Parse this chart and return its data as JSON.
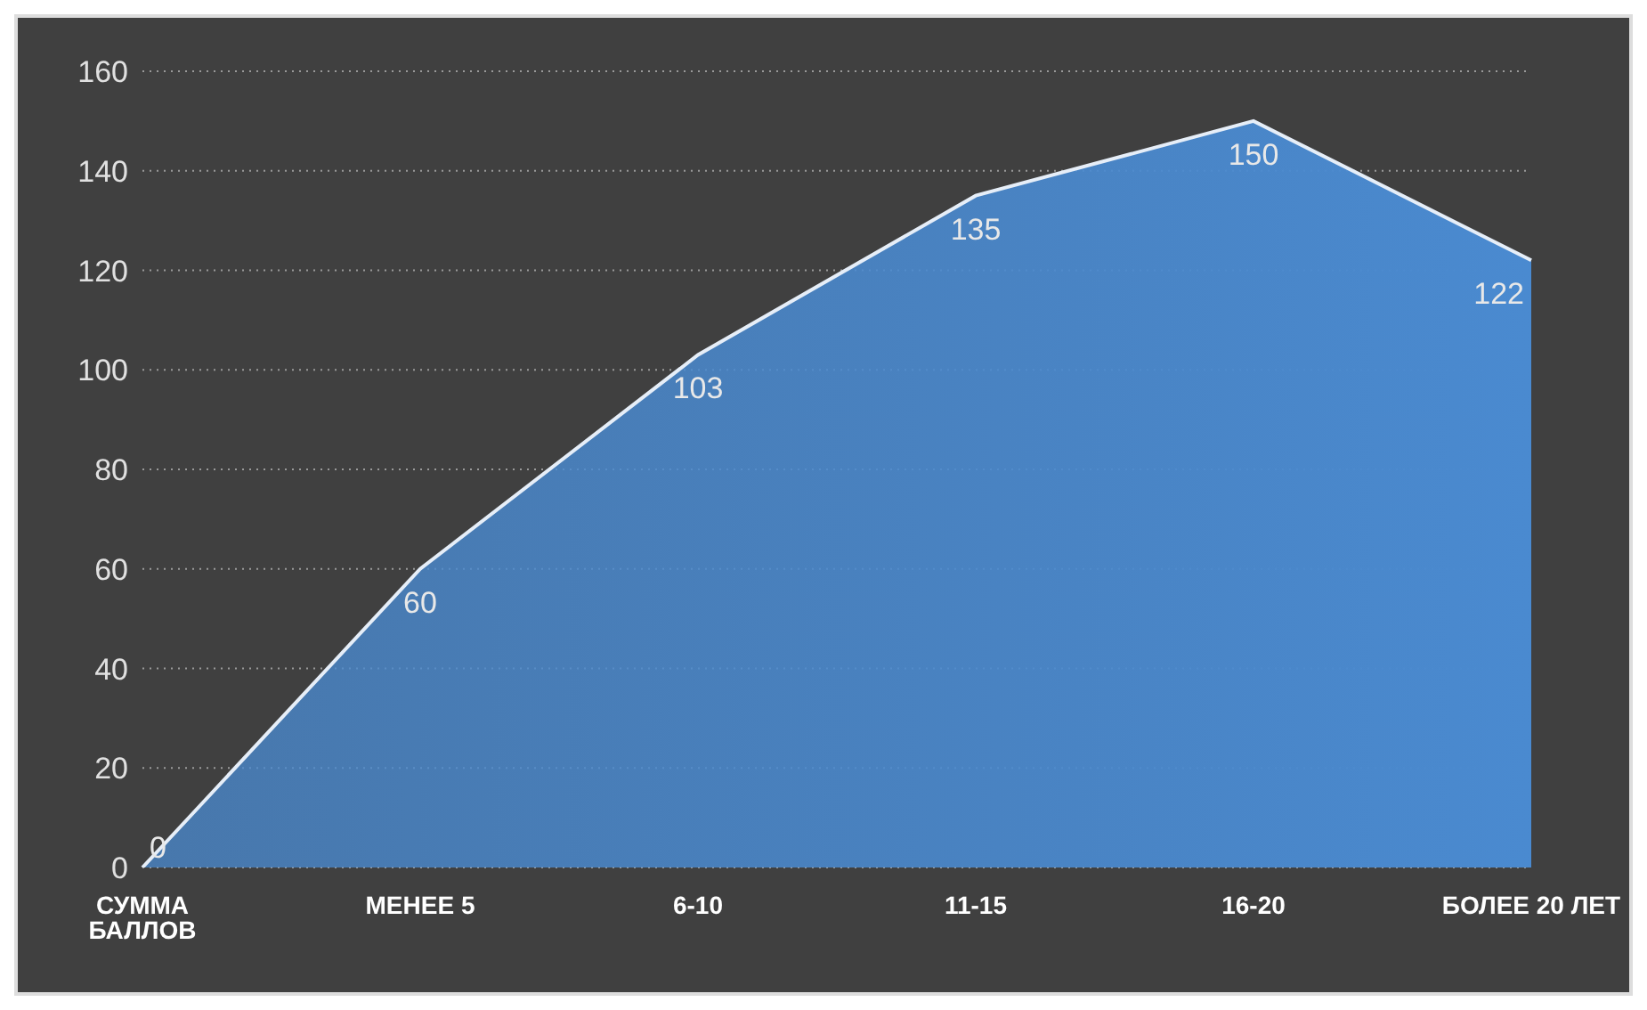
{
  "chart_data": {
    "type": "area",
    "categories": [
      "СУММА БАЛЛОВ",
      "МЕНЕЕ 5",
      "6-10",
      "11-15",
      "16-20",
      "БОЛЕЕ 20 ЛЕТ"
    ],
    "values": [
      0,
      60,
      103,
      135,
      150,
      122
    ],
    "color": "#4a8ad0",
    "ylim": [
      0,
      160
    ],
    "yticks": [
      0,
      20,
      40,
      60,
      80,
      100,
      120,
      140,
      160
    ],
    "grid": "y",
    "data_labels": true
  }
}
